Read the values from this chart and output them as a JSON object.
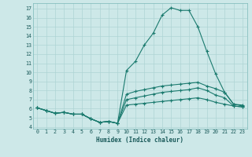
{
  "xlabel": "Humidex (Indice chaleur)",
  "bg_color": "#cde8e8",
  "grid_color": "#aed4d4",
  "line_color": "#1a7a6e",
  "xlim": [
    -0.5,
    23.5
  ],
  "ylim": [
    3.8,
    17.6
  ],
  "yticks": [
    4,
    5,
    6,
    7,
    8,
    9,
    10,
    11,
    12,
    13,
    14,
    15,
    16,
    17
  ],
  "xticks": [
    0,
    1,
    2,
    3,
    4,
    5,
    6,
    7,
    8,
    9,
    10,
    11,
    12,
    13,
    14,
    15,
    16,
    17,
    18,
    19,
    20,
    21,
    22,
    23
  ],
  "line1_y": [
    6.1,
    5.8,
    5.5,
    5.6,
    5.4,
    5.4,
    4.9,
    4.5,
    4.6,
    4.4,
    10.2,
    11.2,
    13.0,
    14.3,
    16.3,
    17.1,
    16.8,
    16.8,
    15.0,
    12.3,
    9.8,
    7.8,
    6.5,
    6.4
  ],
  "line2_y": [
    6.1,
    5.8,
    5.5,
    5.6,
    5.4,
    5.4,
    4.9,
    4.5,
    4.6,
    4.4,
    7.6,
    7.9,
    8.1,
    8.3,
    8.5,
    8.6,
    8.7,
    8.8,
    8.9,
    8.5,
    8.2,
    7.8,
    6.5,
    6.3
  ],
  "line3_y": [
    6.1,
    5.8,
    5.5,
    5.6,
    5.4,
    5.4,
    4.9,
    4.5,
    4.6,
    4.4,
    7.0,
    7.2,
    7.4,
    7.6,
    7.8,
    7.9,
    8.0,
    8.1,
    8.3,
    8.0,
    7.5,
    7.2,
    6.3,
    6.2
  ],
  "line4_y": [
    6.1,
    5.8,
    5.5,
    5.6,
    5.4,
    5.4,
    4.9,
    4.5,
    4.6,
    4.4,
    6.4,
    6.5,
    6.6,
    6.7,
    6.8,
    6.9,
    7.0,
    7.1,
    7.2,
    7.0,
    6.7,
    6.5,
    6.3,
    6.2
  ]
}
